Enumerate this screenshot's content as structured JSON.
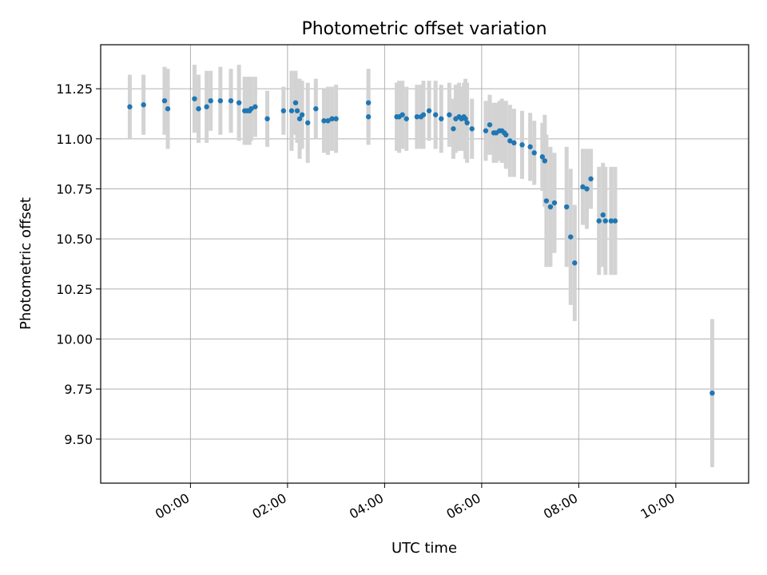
{
  "chart_data": {
    "type": "scatter",
    "title": "Photometric offset variation",
    "xlabel": "UTC time",
    "ylabel": "Photometric offset",
    "xlim": [
      "-01:51",
      "11:30"
    ],
    "ylim": [
      9.28,
      11.47
    ],
    "x_ticks": [
      "00:00",
      "02:00",
      "04:00",
      "06:00",
      "08:00",
      "10:00"
    ],
    "y_ticks": [
      "9.50",
      "9.75",
      "10.00",
      "10.25",
      "10.50",
      "10.75",
      "11.00",
      "11.25"
    ],
    "grid": true,
    "colors": {
      "points": "#1f77b4",
      "error_bars": "#d3d3d3",
      "grid": "#b0b0b0"
    },
    "series": [
      {
        "x": [
          "-01:15",
          "-00:58",
          "-00:32",
          "-00:28",
          "00:05",
          "00:10",
          "00:20",
          "00:25",
          "00:37",
          "00:50",
          "01:00",
          "01:07",
          "01:10",
          "01:13",
          "01:15",
          "01:20",
          "01:35",
          "01:55",
          "02:05",
          "02:10",
          "02:12",
          "02:15",
          "02:18",
          "02:25",
          "02:35",
          "02:45",
          "02:50",
          "02:55",
          "03:00",
          "03:40",
          "03:40",
          "04:15",
          "04:18",
          "04:22",
          "04:27",
          "04:40",
          "04:45",
          "04:48",
          "04:55",
          "05:03",
          "05:10",
          "05:20",
          "05:25",
          "05:28",
          "05:32",
          "05:35",
          "05:38",
          "05:40",
          "05:42",
          "05:48",
          "06:05",
          "06:10",
          "06:15",
          "06:18",
          "06:22",
          "06:25",
          "06:28",
          "06:30",
          "06:35",
          "06:40",
          "06:50",
          "07:00",
          "07:05",
          "07:15",
          "07:18",
          "07:20",
          "07:25",
          "07:30",
          "07:45",
          "07:50",
          "07:55",
          "08:05",
          "08:10",
          "08:15",
          "08:25",
          "08:30",
          "08:33",
          "08:40",
          "08:45",
          "10:45"
        ],
        "y": [
          11.16,
          11.17,
          11.19,
          11.15,
          11.2,
          11.15,
          11.16,
          11.19,
          11.19,
          11.19,
          11.18,
          11.14,
          11.14,
          11.14,
          11.15,
          11.16,
          11.1,
          11.14,
          11.14,
          11.18,
          11.14,
          11.1,
          11.12,
          11.08,
          11.15,
          11.09,
          11.09,
          11.1,
          11.1,
          11.18,
          11.11,
          11.11,
          11.11,
          11.12,
          11.1,
          11.11,
          11.11,
          11.12,
          11.14,
          11.12,
          11.1,
          11.12,
          11.05,
          11.1,
          11.11,
          11.1,
          11.11,
          11.1,
          11.08,
          11.05,
          11.04,
          11.07,
          11.03,
          11.03,
          11.04,
          11.04,
          11.03,
          11.02,
          10.99,
          10.98,
          10.97,
          10.96,
          10.93,
          10.91,
          10.89,
          10.69,
          10.66,
          10.68,
          10.66,
          10.51,
          10.38,
          10.76,
          10.75,
          10.8,
          10.59,
          10.62,
          10.59,
          10.59,
          10.59,
          9.73
        ],
        "yerr": [
          0.16,
          0.15,
          0.17,
          0.2,
          0.17,
          0.17,
          0.18,
          0.15,
          0.17,
          0.16,
          0.19,
          0.17,
          0.17,
          0.17,
          0.16,
          0.15,
          0.14,
          0.12,
          0.2,
          0.16,
          0.16,
          0.2,
          0.17,
          0.2,
          0.15,
          0.16,
          0.17,
          0.16,
          0.17,
          0.17,
          0.14,
          0.17,
          0.18,
          0.17,
          0.16,
          0.16,
          0.16,
          0.17,
          0.15,
          0.17,
          0.17,
          0.16,
          0.15,
          0.17,
          0.17,
          0.16,
          0.17,
          0.2,
          0.2,
          0.15,
          0.15,
          0.15,
          0.15,
          0.15,
          0.15,
          0.16,
          0.15,
          0.17,
          0.18,
          0.17,
          0.17,
          0.17,
          0.16,
          0.17,
          0.23,
          0.33,
          0.3,
          0.25,
          0.3,
          0.34,
          0.29,
          0.19,
          0.2,
          0.15,
          0.27,
          0.26,
          0.27,
          0.27,
          0.27,
          0.37
        ]
      }
    ]
  }
}
